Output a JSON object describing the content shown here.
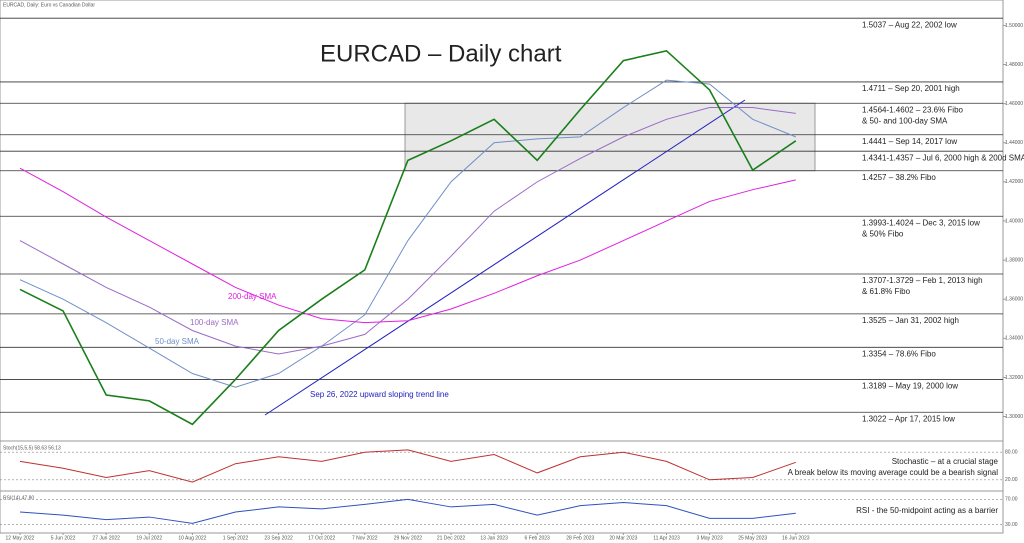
{
  "chart_data": {
    "type": "line",
    "title": "EURCAD – Daily chart",
    "subtitle": "EURCAD, Daily: Euro vs Canadian Dollar",
    "categories": [
      "12 May 2022",
      "5 Jun 2022",
      "27 Jun 2022",
      "19 Jul 2022",
      "10 Aug 2022",
      "1 Sep 2022",
      "23 Sep 2022",
      "17 Oct 2022",
      "7 Nov 2022",
      "29 Nov 2022",
      "21 Dec 2022",
      "13 Jan 2023",
      "6 Feb 2023",
      "28 Feb 2023",
      "20 Mar 2023",
      "11 Apr 2023",
      "3 May 2023",
      "25 May 2023",
      "16 Jun 2023"
    ],
    "series": [
      {
        "name": "EURCAD",
        "color": "#1a7f1a",
        "values": [
          1.365,
          1.354,
          1.311,
          1.308,
          1.296,
          1.319,
          1.344,
          1.36,
          1.375,
          1.431,
          1.441,
          1.452,
          1.431,
          1.457,
          1.482,
          1.487,
          1.467,
          1.426,
          1.441
        ]
      },
      {
        "name": "200-day SMA",
        "color": "#e020e0",
        "values": [
          1.427,
          1.415,
          1.402,
          1.39,
          1.378,
          1.366,
          1.357,
          1.35,
          1.348,
          1.349,
          1.355,
          1.363,
          1.372,
          1.38,
          1.39,
          1.4,
          1.41,
          1.416,
          1.421
        ]
      },
      {
        "name": "100-day SMA",
        "color": "#9b6bc8",
        "values": [
          1.39,
          1.378,
          1.366,
          1.356,
          1.344,
          1.336,
          1.332,
          1.336,
          1.342,
          1.36,
          1.382,
          1.405,
          1.42,
          1.432,
          1.443,
          1.452,
          1.458,
          1.458,
          1.455
        ]
      },
      {
        "name": "50-day SMA",
        "color": "#6f8fc8",
        "values": [
          1.37,
          1.36,
          1.348,
          1.335,
          1.322,
          1.315,
          1.322,
          1.336,
          1.352,
          1.39,
          1.42,
          1.44,
          1.442,
          1.443,
          1.458,
          1.472,
          1.47,
          1.452,
          1.443
        ]
      }
    ],
    "ylim": [
      1.288,
      1.513
    ],
    "yticks": [
      {
        "value": 1.3,
        "label": "1.30000"
      },
      {
        "value": 1.32,
        "label": "1.32000"
      },
      {
        "value": 1.34,
        "label": "1.34000"
      },
      {
        "value": 1.36,
        "label": "1.36000"
      },
      {
        "value": 1.38,
        "label": "1.38000"
      },
      {
        "value": 1.4,
        "label": "1.40000"
      },
      {
        "value": 1.42,
        "label": "1.42000"
      },
      {
        "value": 1.44,
        "label": "1.44000"
      },
      {
        "value": 1.46,
        "label": "1.46000"
      },
      {
        "value": 1.48,
        "label": "1.48000"
      },
      {
        "value": 1.5,
        "label": "1.50000"
      }
    ],
    "levels": [
      {
        "value": 1.5037,
        "label": "1.5037 – Aug 22, 2002 low"
      },
      {
        "value": 1.4711,
        "label": "1.4711 – Sep 20, 2001 high"
      },
      {
        "value": 1.4602,
        "label": "1.4564-1.4602 – 23.6% Fibo",
        "note": "& 50- and 100-day SMA"
      },
      {
        "value": 1.4441,
        "label": "1.4441 – Sep 14, 2017 low"
      },
      {
        "value": 1.4357,
        "label": "1.4341-1.4357 – Jul 6, 2000 high & 200d SMA"
      },
      {
        "value": 1.4257,
        "label": "1.4257 – 38.2% Fibo"
      },
      {
        "value": 1.4024,
        "label": "1.3993-1.4024 – Dec 3, 2015 low",
        "note": "& 50% Fibo"
      },
      {
        "value": 1.3729,
        "label": "1.3707-1.3729 – Feb 1, 2013 high",
        "note": "& 61.8% Fibo"
      },
      {
        "value": 1.3525,
        "label": "1.3525 – Jan 31, 2002 high"
      },
      {
        "value": 1.3354,
        "label": "1.3354 – 78.6% Fibo"
      },
      {
        "value": 1.3189,
        "label": "1.3189 – May 19, 2000 low"
      },
      {
        "value": 1.3022,
        "label": "1.3022 – Apr 17, 2015 low"
      }
    ],
    "annotations": [
      "200-day SMA",
      "100-day SMA",
      "50-day SMA",
      "Sep 26, 2022 upward sloping trend line"
    ],
    "stochastic": {
      "title": "Stoch(15,5,5) 58.63 56.13",
      "notes": [
        "Stochastic – at a crucial stage",
        "A break below its moving average could be a bearish signal"
      ],
      "color": "#c03030",
      "values": [
        60,
        45,
        25,
        40,
        15,
        55,
        70,
        60,
        80,
        85,
        60,
        75,
        35,
        70,
        80,
        60,
        20,
        25,
        58
      ],
      "ylim": [
        0,
        100
      ],
      "yticks": [
        {
          "value": 80,
          "label": "80.00"
        },
        {
          "value": 20,
          "label": "20.00"
        }
      ]
    },
    "rsi": {
      "title": "RSI(14) 47.80",
      "notes": [
        "RSI - the 50-midpoint acting as a barrier"
      ],
      "color": "#3050c0",
      "values": [
        50,
        45,
        38,
        42,
        32,
        50,
        58,
        55,
        62,
        70,
        58,
        62,
        45,
        60,
        65,
        60,
        40,
        40,
        48
      ],
      "ylim": [
        20,
        80
      ],
      "yticks": [
        {
          "value": 70,
          "label": "70.00"
        },
        {
          "value": 30,
          "label": "30.00"
        }
      ]
    }
  }
}
